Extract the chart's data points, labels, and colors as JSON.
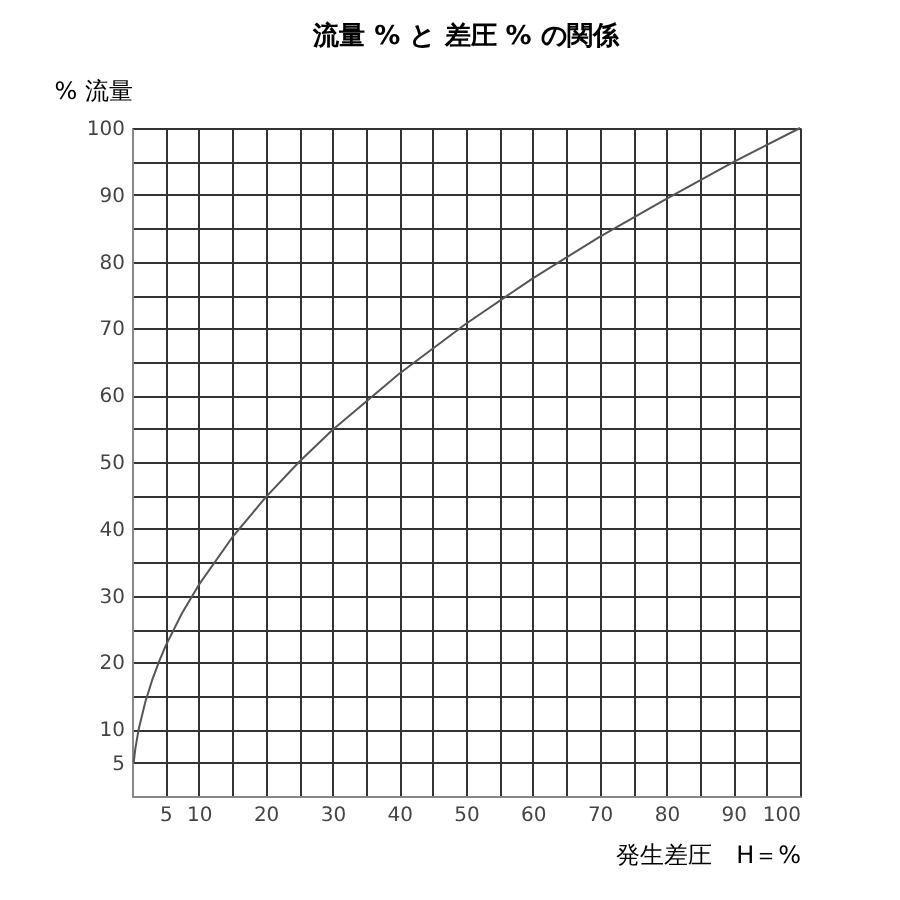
{
  "chart_data": {
    "type": "line",
    "title": "流量 % と 差圧 % の関係",
    "xlabel": "発生差圧　H＝%",
    "ylabel": "% 流量",
    "x": [
      0.25,
      0.5,
      1,
      2,
      3,
      4,
      5,
      7.5,
      10,
      15,
      20,
      25,
      30,
      40,
      50,
      60,
      70,
      80,
      90,
      100
    ],
    "series": [
      {
        "color": "#555555",
        "values": [
          5,
          7.1,
          10,
          14.1,
          17.3,
          20,
          22.4,
          27.4,
          31.6,
          38.7,
          44.7,
          50,
          54.8,
          63.2,
          70.7,
          77.5,
          83.7,
          89.4,
          94.9,
          100
        ]
      }
    ],
    "xlim": [
      0,
      100
    ],
    "ylim": [
      0,
      100
    ],
    "xticks": [
      5,
      10,
      {
        "value": 15,
        "label": null
      },
      20,
      {
        "value": 25,
        "label": null
      },
      30,
      {
        "value": 35,
        "label": null
      },
      40,
      {
        "value": 45,
        "label": null
      },
      50,
      {
        "value": 55,
        "label": null
      },
      60,
      {
        "value": 65,
        "label": null
      },
      70,
      {
        "value": 75,
        "label": null
      },
      80,
      {
        "value": 85,
        "label": null
      },
      90,
      {
        "value": 95,
        "label": null
      },
      100
    ],
    "yticks": [
      5,
      10,
      {
        "value": 15,
        "label": null
      },
      20,
      {
        "value": 25,
        "label": null
      },
      30,
      {
        "value": 35,
        "label": null
      },
      40,
      {
        "value": 45,
        "label": null
      },
      50,
      {
        "value": 55,
        "label": null
      },
      60,
      {
        "value": 65,
        "label": null
      },
      70,
      {
        "value": 75,
        "label": null
      },
      80,
      {
        "value": 85,
        "label": null
      },
      90,
      {
        "value": 95,
        "label": null
      },
      100
    ],
    "grid": true,
    "marker": "none",
    "line_style": "solid"
  }
}
